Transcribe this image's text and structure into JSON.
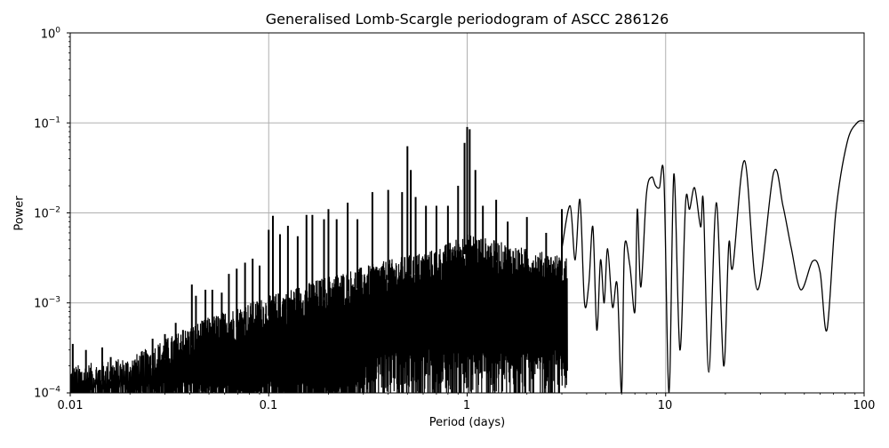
{
  "chart_data": {
    "type": "line",
    "title": "Generalised Lomb-Scargle periodogram of ASCC 286126",
    "xlabel": "Period (days)",
    "ylabel": "Power",
    "xscale": "log",
    "yscale": "log",
    "xlim": [
      0.01,
      100
    ],
    "ylim": [
      0.0001,
      1
    ],
    "grid": true,
    "legend": null,
    "x_ticks": [
      {
        "value": 0.01,
        "label": "0.01"
      },
      {
        "value": 0.1,
        "label": "0.1"
      },
      {
        "value": 1,
        "label": "1"
      },
      {
        "value": 10,
        "label": "10"
      },
      {
        "value": 100,
        "label": "100"
      }
    ],
    "y_ticks": [
      {
        "value": 1,
        "base": "10",
        "exp": "0"
      },
      {
        "value": 0.1,
        "base": "10",
        "exp": "−1"
      },
      {
        "value": 0.01,
        "base": "10",
        "exp": "−2"
      },
      {
        "value": 0.001,
        "base": "10",
        "exp": "−3"
      },
      {
        "value": 0.0001,
        "base": "10",
        "exp": "−4"
      }
    ],
    "line_color": "#000000",
    "grid_color": "#b0b0b0",
    "noise_envelope": {
      "description": "upper envelope of dense noisy region (period, power)",
      "points": [
        [
          0.01,
          0.0002
        ],
        [
          0.02,
          0.00025
        ],
        [
          0.03,
          0.0004
        ],
        [
          0.05,
          0.0007
        ],
        [
          0.1,
          0.0012
        ],
        [
          0.2,
          0.002
        ],
        [
          0.4,
          0.003
        ],
        [
          0.7,
          0.004
        ],
        [
          1.0,
          0.006
        ],
        [
          2.0,
          0.004
        ],
        [
          4.0,
          0.003
        ]
      ]
    },
    "spikes": [
      [
        0.0103,
        0.00035
      ],
      [
        0.012,
        0.0003
      ],
      [
        0.0145,
        0.00032
      ],
      [
        0.016,
        0.00025
      ],
      [
        0.021,
        0.0002
      ],
      [
        0.026,
        0.0004
      ],
      [
        0.03,
        0.00045
      ],
      [
        0.034,
        0.0006
      ],
      [
        0.037,
        0.0005
      ],
      [
        0.041,
        0.0016
      ],
      [
        0.043,
        0.0012
      ],
      [
        0.048,
        0.0014
      ],
      [
        0.052,
        0.0014
      ],
      [
        0.058,
        0.0013
      ],
      [
        0.063,
        0.0021
      ],
      [
        0.069,
        0.0024
      ],
      [
        0.076,
        0.0028
      ],
      [
        0.083,
        0.0031
      ],
      [
        0.09,
        0.0026
      ],
      [
        0.1,
        0.0065
      ],
      [
        0.105,
        0.0093
      ],
      [
        0.114,
        0.0058
      ],
      [
        0.125,
        0.0072
      ],
      [
        0.14,
        0.0055
      ],
      [
        0.155,
        0.0095
      ],
      [
        0.166,
        0.0095
      ],
      [
        0.19,
        0.0085
      ],
      [
        0.2,
        0.011
      ],
      [
        0.22,
        0.0085
      ],
      [
        0.25,
        0.013
      ],
      [
        0.28,
        0.0085
      ],
      [
        0.333,
        0.017
      ],
      [
        0.4,
        0.018
      ],
      [
        0.47,
        0.017
      ],
      [
        0.5,
        0.055
      ],
      [
        0.52,
        0.03
      ],
      [
        0.55,
        0.015
      ],
      [
        0.62,
        0.012
      ],
      [
        0.7,
        0.012
      ],
      [
        0.8,
        0.012
      ],
      [
        0.9,
        0.02
      ],
      [
        0.97,
        0.06
      ],
      [
        1.0,
        0.09
      ],
      [
        1.03,
        0.085
      ],
      [
        1.1,
        0.03
      ],
      [
        1.2,
        0.012
      ],
      [
        1.4,
        0.014
      ],
      [
        1.6,
        0.008
      ],
      [
        2.0,
        0.009
      ],
      [
        2.5,
        0.006
      ],
      [
        3.0,
        0.011
      ]
    ],
    "smooth_tail": {
      "description": "smooth oscillating curve for long periods (period, power)",
      "points": [
        [
          3.0,
          0.004
        ],
        [
          3.3,
          0.012
        ],
        [
          3.5,
          0.003
        ],
        [
          3.7,
          0.014
        ],
        [
          3.9,
          0.001
        ],
        [
          4.1,
          0.0016
        ],
        [
          4.3,
          0.007
        ],
        [
          4.5,
          0.0005
        ],
        [
          4.7,
          0.003
        ],
        [
          4.9,
          0.001
        ],
        [
          5.1,
          0.004
        ],
        [
          5.4,
          0.0009
        ],
        [
          5.7,
          0.0016
        ],
        [
          6.0,
          0.0001
        ],
        [
          6.2,
          0.004
        ],
        [
          6.6,
          0.0026
        ],
        [
          7.0,
          0.0008
        ],
        [
          7.2,
          0.011
        ],
        [
          7.5,
          0.0015
        ],
        [
          8.0,
          0.016
        ],
        [
          8.5,
          0.025
        ],
        [
          8.9,
          0.02
        ],
        [
          9.3,
          0.019
        ],
        [
          9.8,
          0.024
        ],
        [
          10.4,
          0.0001
        ],
        [
          11.0,
          0.027
        ],
        [
          11.8,
          0.0003
        ],
        [
          12.6,
          0.013
        ],
        [
          13.2,
          0.011
        ],
        [
          14.0,
          0.019
        ],
        [
          15.0,
          0.007
        ],
        [
          15.5,
          0.013
        ],
        [
          16.5,
          0.00017
        ],
        [
          18.0,
          0.013
        ],
        [
          19.6,
          0.0002
        ],
        [
          20.8,
          0.0045
        ],
        [
          21.8,
          0.0025
        ],
        [
          25.0,
          0.038
        ],
        [
          29.0,
          0.0014
        ],
        [
          35.0,
          0.028
        ],
        [
          39.0,
          0.012
        ],
        [
          43.0,
          0.004
        ],
        [
          48.0,
          0.0014
        ],
        [
          55.0,
          0.0029
        ],
        [
          60.0,
          0.0022
        ],
        [
          65.0,
          0.0005
        ],
        [
          72.0,
          0.01
        ],
        [
          82.0,
          0.06
        ],
        [
          92.0,
          0.1
        ],
        [
          100.0,
          0.105
        ]
      ]
    }
  }
}
